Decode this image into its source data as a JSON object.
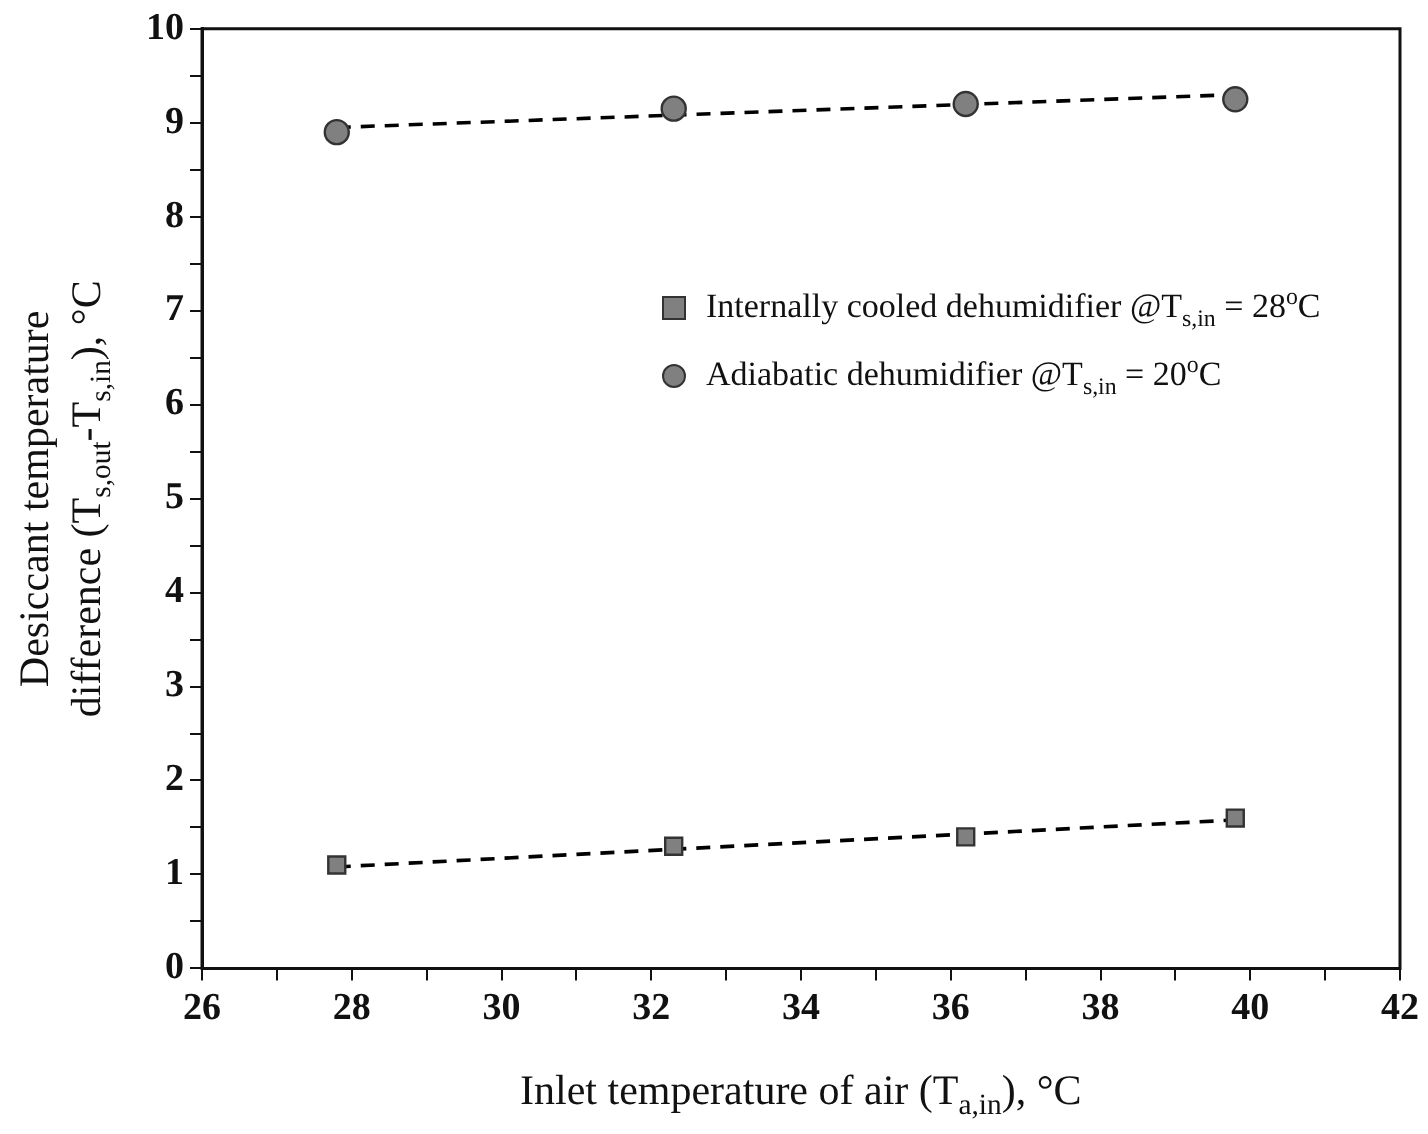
{
  "chart_data": {
    "type": "scatter",
    "xlabel": "Inlet temperature of air (T$_{a,in}$), °C",
    "ylabel": "Desiccant temperature\ndifference (T$_{s,out}$-T$_{s,in}$), °C",
    "xlim": [
      26,
      42
    ],
    "xticks": [
      26,
      {
        "value": 27,
        "label": null
      },
      28,
      {
        "value": 29,
        "label": null
      },
      30,
      {
        "value": 31,
        "label": null
      },
      32,
      {
        "value": 33,
        "label": null
      },
      34,
      {
        "value": 35,
        "label": null
      },
      36,
      {
        "value": 37,
        "label": null
      },
      38,
      {
        "value": 39,
        "label": null
      },
      40,
      {
        "value": 41,
        "label": null
      },
      42
    ],
    "ylim": [
      0,
      10
    ],
    "yticks": [
      0,
      {
        "value": 0.5,
        "label": null
      },
      1,
      {
        "value": 1.5,
        "label": null
      },
      2,
      {
        "value": 2.5,
        "label": null
      },
      3,
      {
        "value": 3.5,
        "label": null
      },
      4,
      {
        "value": 4.5,
        "label": null
      },
      5,
      {
        "value": 5.5,
        "label": null
      },
      6,
      {
        "value": 6.5,
        "label": null
      },
      7,
      {
        "value": 7.5,
        "label": null
      },
      8,
      {
        "value": 8.5,
        "label": null
      },
      9,
      {
        "value": 9.5,
        "label": null
      },
      10
    ],
    "grid": false,
    "legend": "top right",
    "series": [
      {
        "name": "Internally cooled dehumidifier @T$_{s,in}$ = 28$^{o}$C",
        "type": "scatter",
        "marker": "square",
        "color": "#808080",
        "x": [
          27.8,
          32.3,
          36.2,
          39.8
        ],
        "values": [
          1.1,
          1.3,
          1.4,
          1.6
        ]
      },
      {
        "name": "Adiabatic dehumidifier @T$_{s,in}$ = 20$^{o}$C",
        "type": "scatter",
        "marker": "circle",
        "color": "#808080",
        "x": [
          27.8,
          32.3,
          36.2,
          39.8
        ],
        "values": [
          8.9,
          9.15,
          9.2,
          9.25
        ]
      },
      {
        "type": "line",
        "line_style": "dashed",
        "marker": "none",
        "color": "#000000",
        "x": [
          27.8,
          39.8
        ],
        "values": [
          1.08,
          1.58
        ]
      },
      {
        "type": "line",
        "line_style": "dashed",
        "marker": "none",
        "color": "#000000",
        "x": [
          27.8,
          39.8
        ],
        "values": [
          8.95,
          9.3
        ]
      }
    ]
  }
}
